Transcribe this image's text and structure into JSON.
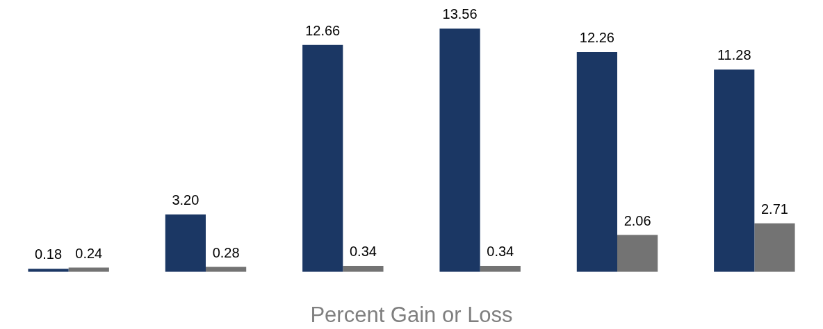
{
  "chart_data": {
    "type": "bar",
    "xlabel": "Percent Gain or Loss",
    "categories": [
      null,
      null,
      null,
      null,
      null,
      null
    ],
    "tick_labels": false,
    "series": [
      {
        "color": "#1b3764",
        "values": [
          0.18,
          3.2,
          12.66,
          13.56,
          12.26,
          11.28
        ],
        "value_labels": [
          "0.18",
          "3.20",
          "12.66",
          "13.56",
          "12.26",
          "11.28"
        ]
      },
      {
        "color": "#737373",
        "values": [
          0.24,
          0.28,
          0.34,
          0.34,
          2.06,
          2.71
        ],
        "value_labels": [
          "0.24",
          "0.28",
          "0.34",
          "0.34",
          "2.06",
          "2.71"
        ]
      }
    ]
  }
}
